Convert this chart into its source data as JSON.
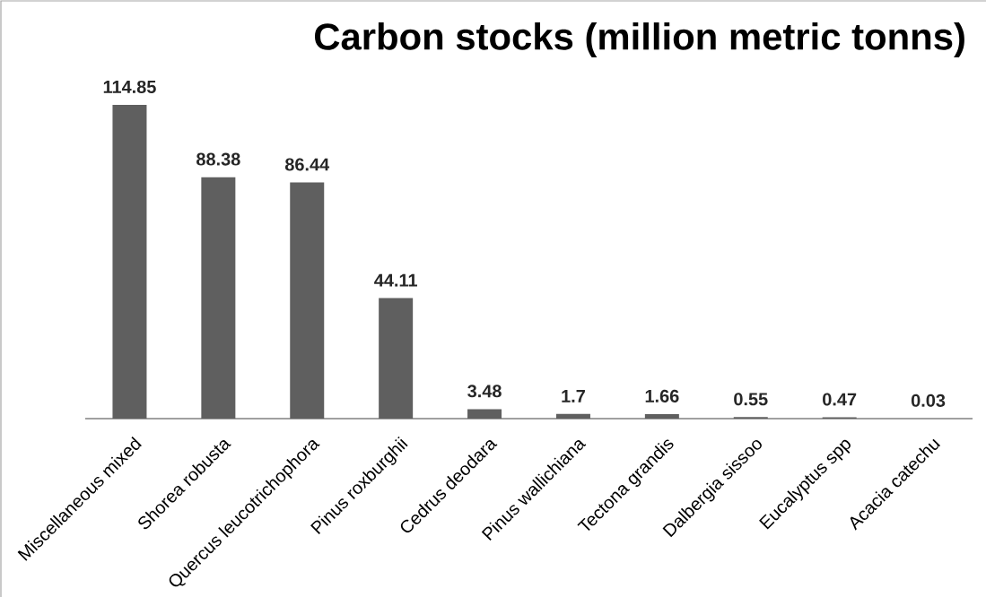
{
  "chart_data": {
    "type": "bar",
    "title": "Carbon stocks (million metric tonns)",
    "categories": [
      "Miscellaneous mixed",
      "Shorea robusta",
      "Quercus leucotrichophora",
      "Pinus roxburghii",
      "Cedrus deodara",
      "Pinus wallichiana",
      "Tectona grandis",
      "Dalbergia sissoo",
      "Eucalyptus spp",
      "Acacia catechu"
    ],
    "values": [
      114.85,
      88.38,
      86.44,
      44.11,
      3.48,
      1.7,
      1.66,
      0.55,
      0.47,
      0.03
    ],
    "color": "#5f5f5f",
    "data_labels": true
  }
}
